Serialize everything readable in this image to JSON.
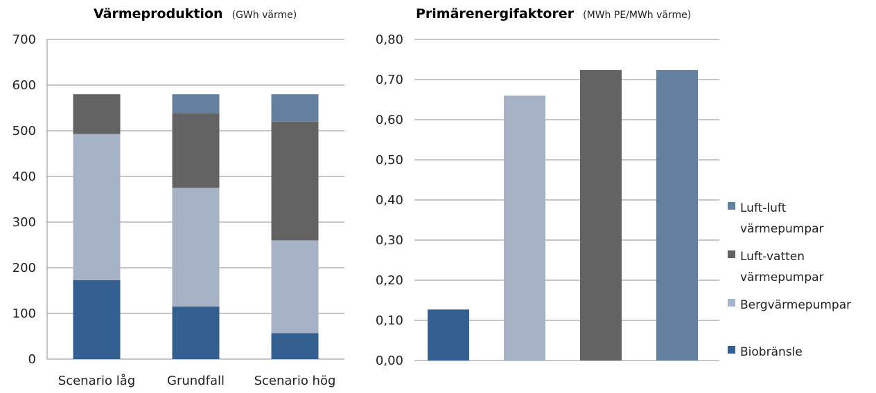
{
  "chart_data": [
    {
      "type": "bar",
      "stacked": true,
      "title": "Värmeproduktion",
      "unit": "(GWh värme)",
      "categories": [
        "Scenario låg",
        "Grundfall",
        "Scenario hög"
      ],
      "ylim": [
        0,
        700
      ],
      "yticks": [
        "0",
        "100",
        "200",
        "300",
        "400",
        "500",
        "600",
        "700"
      ],
      "ytick_values": [
        0,
        100,
        200,
        300,
        400,
        500,
        600,
        700
      ],
      "grid": true,
      "series": [
        {
          "name": "Biobränsle",
          "color": "#335f91",
          "values": [
            173,
            115,
            57
          ]
        },
        {
          "name": "Bergvärmepumpar",
          "color": "#a6b3c7",
          "values": [
            320,
            260,
            203
          ]
        },
        {
          "name": "Luft-vatten värmepumpar",
          "color": "#636363",
          "values": [
            87,
            163,
            260
          ]
        },
        {
          "name": "Luft-luft värmepumpar",
          "color": "#64809f",
          "values": [
            0,
            42,
            60
          ]
        }
      ]
    },
    {
      "type": "bar",
      "title": "Primärenergifaktorer",
      "unit": "(MWh PE/MWh värme)",
      "categories": [
        "Biobränsle",
        "Bergvärmepumpar",
        "Luft-vatten värmepumpar",
        "Luft-luft värmepumpar"
      ],
      "values": [
        0.127,
        0.66,
        0.724,
        0.724
      ],
      "colors": [
        "#335f91",
        "#a6b3c7",
        "#636363",
        "#64809f"
      ],
      "ylim": [
        0,
        0.8
      ],
      "yticks": [
        "0,00",
        "0,10",
        "0,20",
        "0,30",
        "0,40",
        "0,50",
        "0,60",
        "0,70",
        "0,80"
      ],
      "ytick_values": [
        0,
        0.1,
        0.2,
        0.3,
        0.4,
        0.5,
        0.6,
        0.7,
        0.8
      ],
      "grid": true,
      "legend": {
        "placement": "right",
        "entries": [
          {
            "lines": [
              "Luft-luft",
              "värmepumpar"
            ],
            "color": "#64809f"
          },
          {
            "lines": [
              "Luft-vatten",
              "värmepumpar"
            ],
            "color": "#636363"
          },
          {
            "lines": [
              "Bergvärmepumpar"
            ],
            "color": "#a6b3c7"
          },
          {
            "lines": [
              "Biobränsle"
            ],
            "color": "#335f91"
          }
        ]
      }
    }
  ]
}
